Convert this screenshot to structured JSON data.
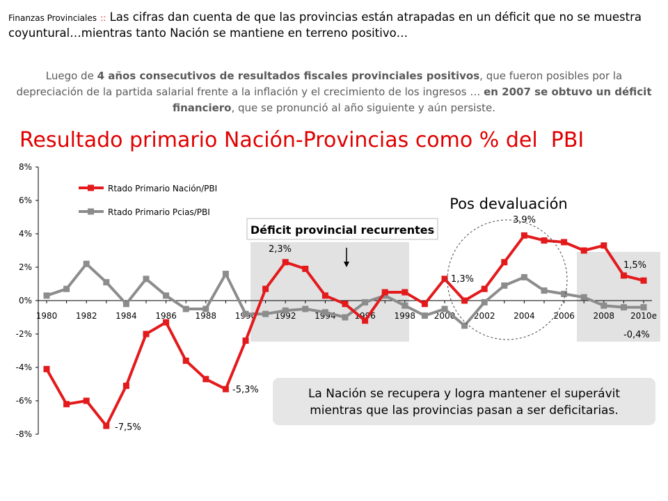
{
  "header": {
    "section": "Finanzas Provinciales",
    "separator": "::",
    "headline": "Las cifras dan cuenta de que las provincias están atrapadas en un déficit que no se muestra coyuntural…mientras tanto Nación se mantiene en terreno positivo…"
  },
  "intro": {
    "p1": "Luego de ",
    "b1": "4 años consecutivos de resultados fiscales provinciales positivos",
    "p2": ", que fueron posibles por la depreciación de la partida salarial frente a la inflación y el crecimiento de los ingresos … ",
    "b2": "en 2007 se obtuvo un déficit financiero",
    "p3": ", que se pronunció al año siguiente y aún persiste."
  },
  "chart_data": {
    "type": "line",
    "title": "Resultado primario Nación-Provincias como % del  PBI",
    "x": [
      "1980",
      "1981",
      "1982",
      "1983",
      "1984",
      "1985",
      "1986",
      "1987",
      "1988",
      "1989",
      "1990",
      "1991",
      "1992",
      "1993",
      "1994",
      "1995",
      "1996",
      "1997",
      "1998",
      "1999",
      "2000",
      "2001",
      "2002",
      "2003",
      "2004",
      "2005",
      "2006",
      "2007",
      "2008",
      "2009",
      "2010e"
    ],
    "x_tick_labels": [
      "1980",
      "1982",
      "1984",
      "1986",
      "1988",
      "1990",
      "1992",
      "1994",
      "1996",
      "1998",
      "2000",
      "2002",
      "2004",
      "2006",
      "2008",
      "2010e"
    ],
    "y_tick_labels": [
      "8%",
      "6%",
      "4%",
      "2%",
      "0%",
      "-2%",
      "-4%",
      "-6%",
      "-8%"
    ],
    "ylim": [
      -8,
      8
    ],
    "y_unit": "%",
    "grid": false,
    "legend_position": "top-left",
    "series": [
      {
        "name": "Rtado Primario Nación/PBI",
        "color": "#e31a1c",
        "values": [
          -4.1,
          -6.2,
          -6.0,
          -7.5,
          -5.1,
          -2.0,
          -1.3,
          -3.6,
          -4.7,
          -5.3,
          -2.4,
          0.7,
          2.3,
          1.9,
          0.3,
          -0.2,
          -1.2,
          0.5,
          0.5,
          -0.2,
          1.3,
          0.0,
          0.7,
          2.3,
          3.9,
          3.6,
          3.5,
          3.0,
          3.3,
          1.5,
          1.2
        ]
      },
      {
        "name": "Rtado Primario Pcias/PBI",
        "color": "#8c8c8c",
        "values": [
          0.3,
          0.7,
          2.2,
          1.1,
          -0.2,
          1.3,
          0.3,
          -0.5,
          -0.5,
          1.6,
          -0.8,
          -0.8,
          -0.6,
          -0.5,
          -0.7,
          -1.0,
          -0.1,
          0.3,
          -0.3,
          -0.9,
          -0.5,
          -1.5,
          -0.1,
          0.9,
          1.4,
          0.6,
          0.4,
          0.2,
          -0.3,
          -0.4,
          -0.4
        ]
      }
    ],
    "annotations": {
      "deficit_box": "Déficit provincial recurrentes",
      "pos_devaluacion": "Pos devaluación",
      "label_2_3": "2,3%",
      "label_3_9": "3,9%",
      "label_1_3": "1,3%",
      "label_1_5": "1,5%",
      "label_neg_0_4": "-0,4%",
      "label_neg_5_3": "-5,3%",
      "label_neg_7_5": "-7,5%",
      "callout_line1": "La Nación se recupera y logra mantener el superávit",
      "callout_line2": "mientras que las provincias pasan a ser deficitarias."
    },
    "colors": {
      "shade": "#e2e2e2",
      "callout_bg": "#e6e6e6",
      "nacion": "#e31a1c",
      "pcias": "#8c8c8c",
      "title": "#e00000"
    }
  }
}
